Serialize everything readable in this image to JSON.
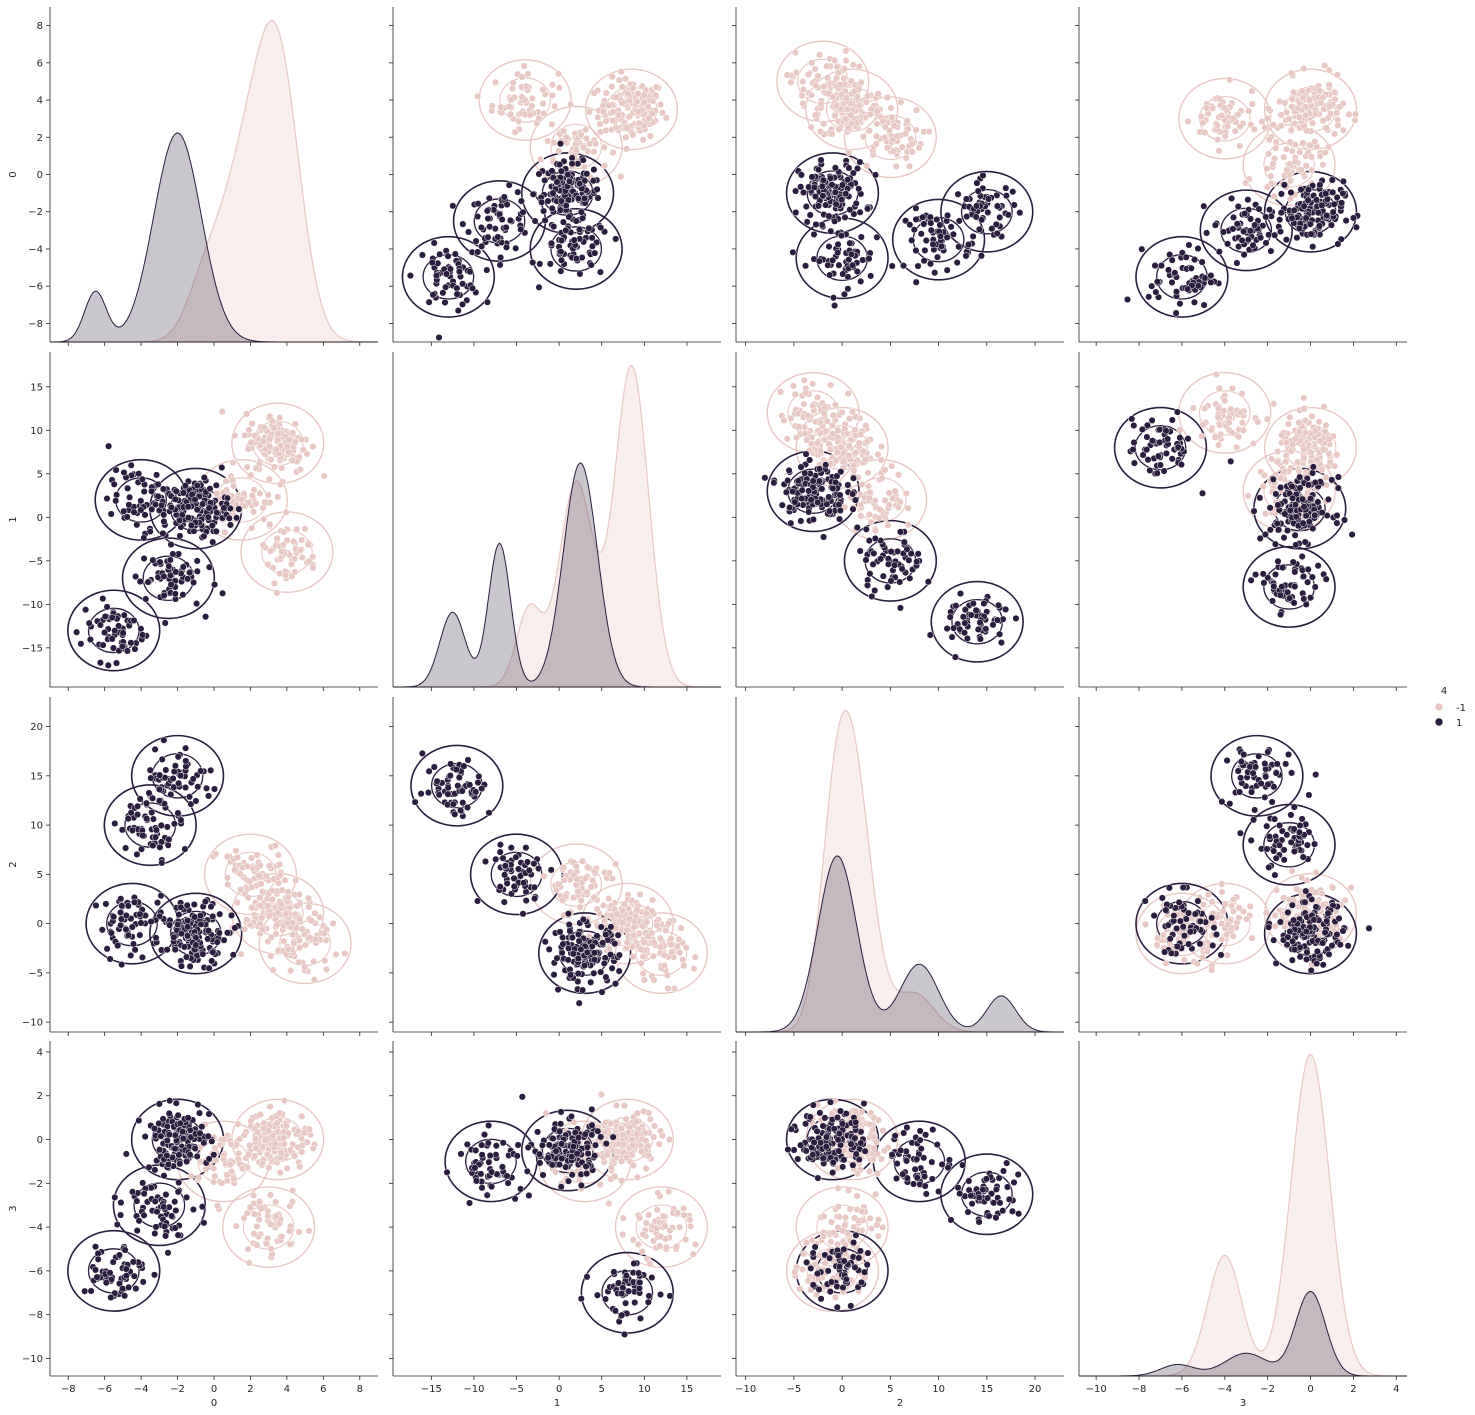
{
  "chart_data": {
    "type": "pairplot",
    "variables": [
      "0",
      "1",
      "2",
      "3"
    ],
    "hue": "4",
    "diagonal": "kde",
    "off_diagonal": "scatter with kde contours",
    "axis_ranges": {
      "0": [
        -9,
        9
      ],
      "1": [
        -19.5,
        19
      ],
      "2": [
        -11,
        23
      ],
      "3": [
        -10.8,
        4.5
      ]
    },
    "ticks": {
      "0": [
        -8,
        -6,
        -4,
        -2,
        0,
        2,
        4,
        6,
        8
      ],
      "1": [
        -15,
        -10,
        -5,
        0,
        5,
        10,
        15
      ],
      "2": [
        -10,
        -5,
        0,
        5,
        10,
        15,
        20
      ],
      "3": [
        -10,
        -8,
        -6,
        -4,
        -2,
        0,
        2,
        4
      ]
    },
    "grid": false,
    "legend": {
      "title": "4",
      "placement": "right",
      "entries": [
        {
          "label": "-1",
          "color": "#e8c8c4"
        },
        {
          "label": "1",
          "color": "#2b1d3d"
        }
      ]
    },
    "series": [
      {
        "hue": "-1",
        "color": "#e8c8c4",
        "diag_peak_density": {
          "0": 8.0,
          "1": 16.5,
          "2": 21.0,
          "3": 3.8
        },
        "diag_modes": {
          "0": [
            1.5,
            3.8
          ],
          "1": [
            -3.5,
            2.0,
            8.5
          ],
          "2": [
            -1.0,
            1.0,
            7.5
          ],
          "3": [
            -4.0,
            0.0
          ]
        },
        "clusters": {
          "0": [
            {
              "mean": 3.5,
              "sd": 1.2,
              "w": 0.6
            },
            {
              "mean": 1.5,
              "sd": 1.2,
              "w": 0.3
            },
            {
              "mean": -0.5,
              "sd": 1.0,
              "w": 0.1
            }
          ],
          "1": [
            {
              "mean": 8.5,
              "sd": 2.0,
              "w": 0.55
            },
            {
              "mean": 2.0,
              "sd": 2.0,
              "w": 0.35
            },
            {
              "mean": -3.5,
              "sd": 1.5,
              "w": 0.1
            }
          ],
          "2": [
            {
              "mean": 1.0,
              "sd": 2.0,
              "w": 0.7
            },
            {
              "mean": -1.0,
              "sd": 1.5,
              "w": 0.2
            },
            {
              "mean": 7.5,
              "sd": 2.0,
              "w": 0.1
            }
          ],
          "3": [
            {
              "mean": 0.0,
              "sd": 0.9,
              "w": 0.75
            },
            {
              "mean": -4.0,
              "sd": 0.8,
              "w": 0.25
            }
          ]
        }
      },
      {
        "hue": "1",
        "color": "#2b1d3d",
        "diag_peak_density": {
          "0": 5.2,
          "1": 11.5,
          "2": 11.5,
          "3": 1.0
        },
        "diag_modes": {
          "0": [
            -6.5,
            -2.0
          ],
          "1": [
            -12.5,
            -7.0,
            2.5
          ],
          "2": [
            -0.5,
            8.0,
            16.5
          ],
          "3": [
            -6.2,
            -3.0,
            0.0
          ]
        },
        "clusters": {
          "0": [
            {
              "mean": -2.0,
              "sd": 1.3,
              "w": 0.9
            },
            {
              "mean": -6.5,
              "sd": 0.6,
              "w": 0.1
            }
          ],
          "1": [
            {
              "mean": 2.5,
              "sd": 2.0,
              "w": 0.6
            },
            {
              "mean": -7.0,
              "sd": 1.3,
              "w": 0.25
            },
            {
              "mean": -12.5,
              "sd": 1.5,
              "w": 0.15
            }
          ],
          "2": [
            {
              "mean": -0.5,
              "sd": 2.0,
              "w": 0.65
            },
            {
              "mean": 8.0,
              "sd": 2.0,
              "w": 0.25
            },
            {
              "mean": 16.5,
              "sd": 1.5,
              "w": 0.1
            }
          ],
          "3": [
            {
              "mean": 0.0,
              "sd": 0.7,
              "w": 0.65
            },
            {
              "mean": -3.0,
              "sd": 1.0,
              "w": 0.25
            },
            {
              "mean": -6.2,
              "sd": 0.8,
              "w": 0.1
            }
          ]
        }
      }
    ],
    "scatter_centers": {
      "-1": {
        "0-1": [
          [
            3.5,
            8.5
          ],
          [
            1.5,
            2.0
          ],
          [
            4.0,
            -4.0
          ]
        ],
        "0-2": [
          [
            3.5,
            1.0
          ],
          [
            2.0,
            5.0
          ],
          [
            5.0,
            -2.0
          ]
        ],
        "0-3": [
          [
            3.5,
            0.0
          ],
          [
            3.0,
            -4.0
          ],
          [
            0.5,
            -1.0
          ]
        ],
        "1-2": [
          [
            8.0,
            0.0
          ],
          [
            2.0,
            4.0
          ],
          [
            12.0,
            -3.0
          ]
        ],
        "1-3": [
          [
            8.0,
            0.0
          ],
          [
            3.0,
            -1.0
          ],
          [
            12.0,
            -4.0
          ]
        ],
        "2-3": [
          [
            1.0,
            0.0
          ],
          [
            0.0,
            -4.0
          ],
          [
            -1.0,
            -6.0
          ]
        ]
      },
      "1": {
        "0-1": [
          [
            -1.0,
            1.0
          ],
          [
            -4.0,
            2.0
          ],
          [
            -2.5,
            -7.0
          ],
          [
            -5.5,
            -13.0
          ]
        ],
        "0-2": [
          [
            -1.0,
            -1.0
          ],
          [
            -4.5,
            0.0
          ],
          [
            -3.5,
            10.0
          ],
          [
            -2.0,
            15.0
          ]
        ],
        "0-3": [
          [
            -2.0,
            0.0
          ],
          [
            -3.0,
            -3.0
          ],
          [
            -5.5,
            -6.0
          ]
        ],
        "1-2": [
          [
            3.0,
            -3.0
          ],
          [
            -5.0,
            5.0
          ],
          [
            -12.0,
            14.0
          ]
        ],
        "1-3": [
          [
            1.0,
            -0.5
          ],
          [
            -8.0,
            -1.0
          ],
          [
            8.0,
            -7.0
          ]
        ],
        "2-3": [
          [
            -1.0,
            0.0
          ],
          [
            8.0,
            -1.0
          ],
          [
            15.0,
            -2.5
          ],
          [
            0.0,
            -6.0
          ]
        ]
      }
    }
  }
}
